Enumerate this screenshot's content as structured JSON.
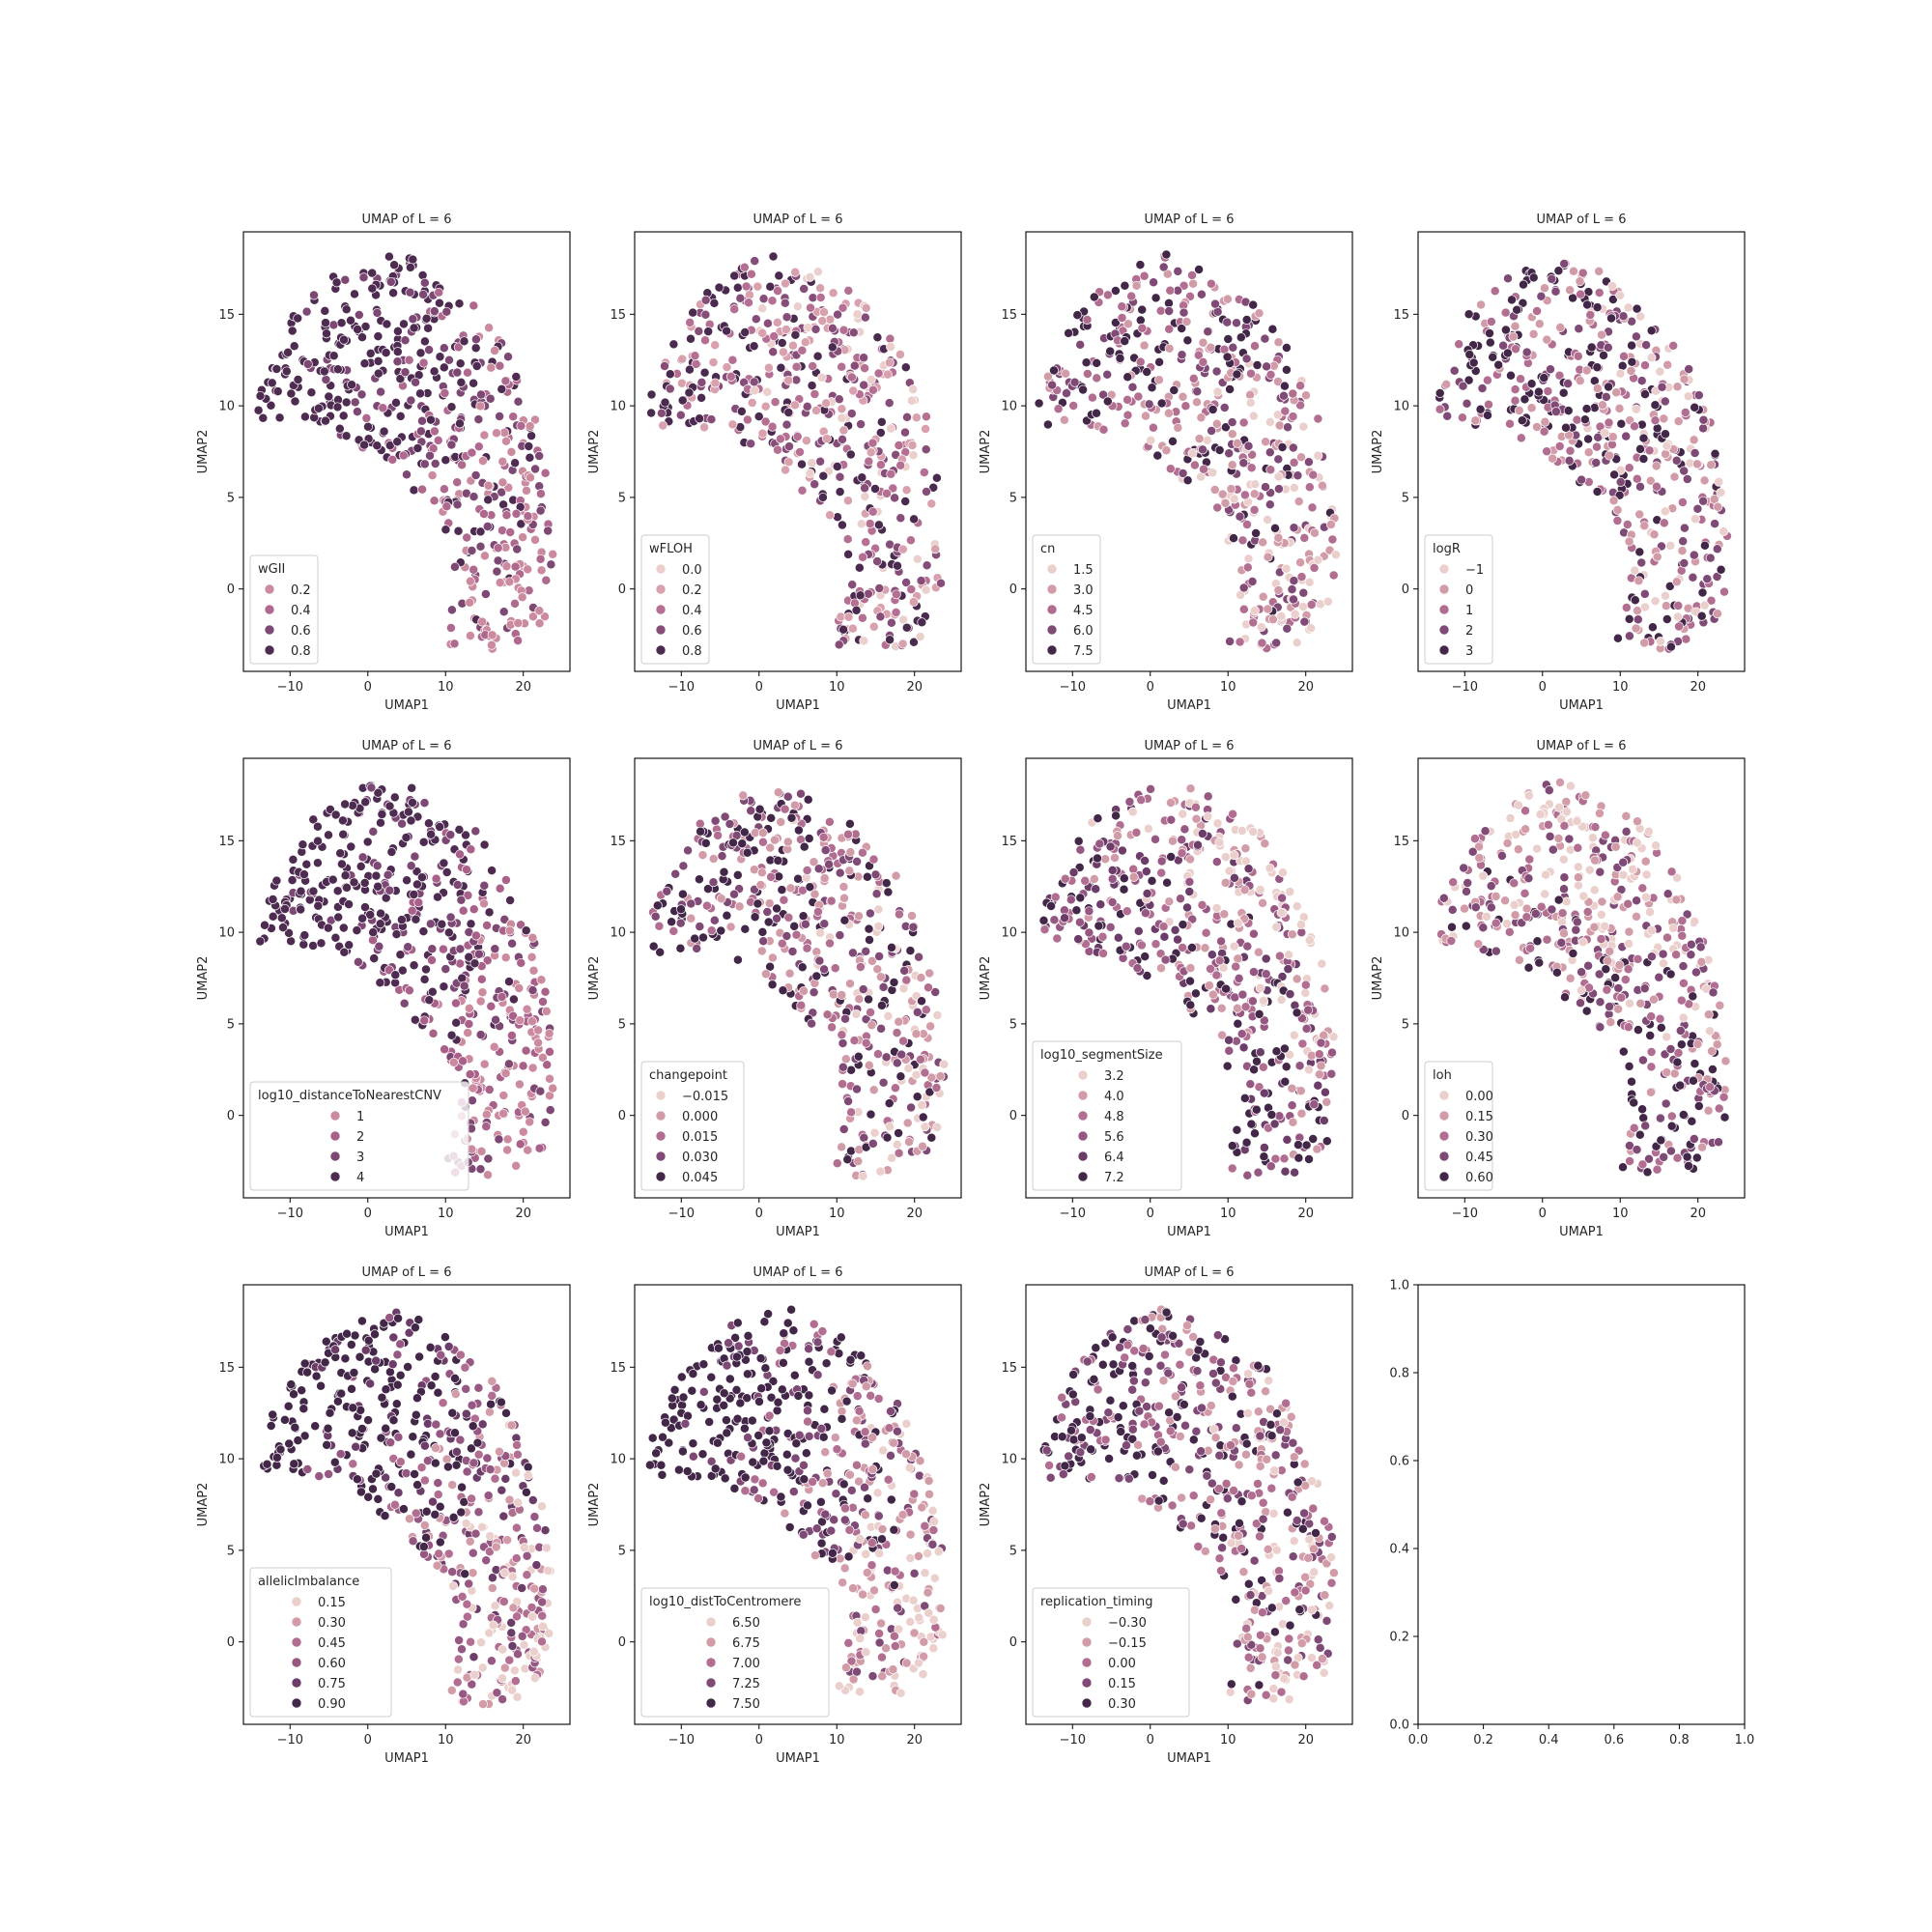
{
  "chart_data": [
    {
      "type": "scatter",
      "title": "UMAP of L = 6",
      "xlabel": "UMAP1",
      "ylabel": "UMAP2",
      "xlim": [
        -16,
        26
      ],
      "ylim": [
        -4.5,
        19.5
      ],
      "xticks": [
        -10,
        0,
        10,
        20
      ],
      "yticks": [
        0,
        5,
        10,
        15
      ],
      "legend": {
        "title": "wGII",
        "entries": [
          {
            "label": "0.2",
            "color": "#cc8a9f"
          },
          {
            "label": "0.4",
            "color": "#b0698e"
          },
          {
            "label": "0.6",
            "color": "#7d4873"
          },
          {
            "label": "0.8",
            "color": "#4e2b51"
          }
        ]
      },
      "points": {
        "count": 520,
        "seed": 11,
        "bias": [
          0.55,
          0.25
        ]
      }
    },
    {
      "type": "scatter",
      "title": "UMAP of L = 6",
      "xlabel": "UMAP1",
      "ylabel": "UMAP2",
      "xlim": [
        -16,
        26
      ],
      "ylim": [
        -4.5,
        19.5
      ],
      "xticks": [
        -10,
        0,
        10,
        20
      ],
      "yticks": [
        0,
        5,
        10,
        15
      ],
      "legend": {
        "title": "wFLOH",
        "entries": [
          {
            "label": "0.0",
            "color": "#ebcfcc"
          },
          {
            "label": "0.2",
            "color": "#d9a0ae"
          },
          {
            "label": "0.4",
            "color": "#b46f92"
          },
          {
            "label": "0.6",
            "color": "#874d79"
          },
          {
            "label": "0.8",
            "color": "#4a2a4e"
          }
        ]
      },
      "points": {
        "count": 520,
        "seed": 23,
        "bias": [
          0.3,
          -0.1
        ]
      }
    },
    {
      "type": "scatter",
      "title": "UMAP of L = 6",
      "xlabel": "UMAP1",
      "ylabel": "UMAP2",
      "xlim": [
        -16,
        26
      ],
      "ylim": [
        -4.5,
        19.5
      ],
      "xticks": [
        -10,
        0,
        10,
        20
      ],
      "yticks": [
        0,
        5,
        10,
        15
      ],
      "legend": {
        "title": "cn",
        "entries": [
          {
            "label": "1.5",
            "color": "#ebcfcc"
          },
          {
            "label": "3.0",
            "color": "#d29ba8"
          },
          {
            "label": "4.5",
            "color": "#b16e91"
          },
          {
            "label": "6.0",
            "color": "#7f4a76"
          },
          {
            "label": "7.5",
            "color": "#432748"
          }
        ]
      },
      "points": {
        "count": 520,
        "seed": 37,
        "bias": [
          0.2,
          0.2
        ]
      }
    },
    {
      "type": "scatter",
      "title": "UMAP of L = 6",
      "xlabel": "UMAP1",
      "ylabel": "UMAP2",
      "xlim": [
        -16,
        26
      ],
      "ylim": [
        -4.5,
        19.5
      ],
      "xticks": [
        -10,
        0,
        10,
        20
      ],
      "yticks": [
        0,
        5,
        10,
        15
      ],
      "legend": {
        "title": "logR",
        "entries": [
          {
            "label": "−1",
            "color": "#ebcfcc"
          },
          {
            "label": "0",
            "color": "#d29ba8"
          },
          {
            "label": "1",
            "color": "#b16e91"
          },
          {
            "label": "2",
            "color": "#7f4a76"
          },
          {
            "label": "3",
            "color": "#432748"
          }
        ]
      },
      "points": {
        "count": 520,
        "seed": 41,
        "bias": [
          0.35,
          0.0
        ]
      }
    },
    {
      "type": "scatter",
      "title": "UMAP of L = 6",
      "xlabel": "UMAP1",
      "ylabel": "UMAP2",
      "xlim": [
        -16,
        26
      ],
      "ylim": [
        -4.5,
        19.5
      ],
      "xticks": [
        -10,
        0,
        10,
        20
      ],
      "yticks": [
        0,
        5,
        10,
        15
      ],
      "legend": {
        "title": "log10_distanceToNearestCNV",
        "entries": [
          {
            "label": "1",
            "color": "#cc8a9f"
          },
          {
            "label": "2",
            "color": "#a9618a"
          },
          {
            "label": "3",
            "color": "#7d4873"
          },
          {
            "label": "4",
            "color": "#4e2b51"
          }
        ]
      },
      "points": {
        "count": 520,
        "seed": 53,
        "bias": [
          0.65,
          0.3
        ]
      }
    },
    {
      "type": "scatter",
      "title": "UMAP of L = 6",
      "xlabel": "UMAP1",
      "ylabel": "UMAP2",
      "xlim": [
        -16,
        26
      ],
      "ylim": [
        -4.5,
        19.5
      ],
      "xticks": [
        -10,
        0,
        10,
        20
      ],
      "yticks": [
        0,
        5,
        10,
        15
      ],
      "legend": {
        "title": "changepoint",
        "entries": [
          {
            "label": "−0.015",
            "color": "#ebcfcc"
          },
          {
            "label": "0.000",
            "color": "#d29ba8"
          },
          {
            "label": "0.015",
            "color": "#b16e91"
          },
          {
            "label": "0.030",
            "color": "#7f4a76"
          },
          {
            "label": "0.045",
            "color": "#432748"
          }
        ]
      },
      "points": {
        "count": 520,
        "seed": 61,
        "bias": [
          0.3,
          0.0
        ]
      }
    },
    {
      "type": "scatter",
      "title": "UMAP of L = 6",
      "xlabel": "UMAP1",
      "ylabel": "UMAP2",
      "xlim": [
        -16,
        26
      ],
      "ylim": [
        -4.5,
        19.5
      ],
      "xticks": [
        -10,
        0,
        10,
        20
      ],
      "yticks": [
        0,
        5,
        10,
        15
      ],
      "legend": {
        "title": "log10_segmentSize",
        "entries": [
          {
            "label": "3.2",
            "color": "#ebcfcc"
          },
          {
            "label": "4.0",
            "color": "#d29ba8"
          },
          {
            "label": "4.8",
            "color": "#b16e91"
          },
          {
            "label": "5.6",
            "color": "#965883"
          },
          {
            "label": "6.4",
            "color": "#6b3d68"
          },
          {
            "label": "7.2",
            "color": "#432748"
          }
        ]
      },
      "points": {
        "count": 520,
        "seed": 73,
        "bias": [
          0.45,
          -0.35
        ]
      }
    },
    {
      "type": "scatter",
      "title": "UMAP of L = 6",
      "xlabel": "UMAP1",
      "ylabel": "UMAP2",
      "xlim": [
        -16,
        26
      ],
      "ylim": [
        -4.5,
        19.5
      ],
      "xticks": [
        -10,
        0,
        10,
        20
      ],
      "yticks": [
        0,
        5,
        10,
        15
      ],
      "legend": {
        "title": "loh",
        "entries": [
          {
            "label": "0.00",
            "color": "#ebcfcc"
          },
          {
            "label": "0.15",
            "color": "#d29ba8"
          },
          {
            "label": "0.30",
            "color": "#b16e91"
          },
          {
            "label": "0.45",
            "color": "#7f4a76"
          },
          {
            "label": "0.60",
            "color": "#432748"
          }
        ]
      },
      "points": {
        "count": 520,
        "seed": 89,
        "bias": [
          0.15,
          -0.4
        ]
      }
    },
    {
      "type": "scatter",
      "title": "UMAP of L = 6",
      "xlabel": "UMAP1",
      "ylabel": "UMAP2",
      "xlim": [
        -16,
        26
      ],
      "ylim": [
        -4.5,
        19.5
      ],
      "xticks": [
        -10,
        0,
        10,
        20
      ],
      "yticks": [
        0,
        5,
        10,
        15
      ],
      "legend": {
        "title": "allelicImbalance",
        "entries": [
          {
            "label": "0.15",
            "color": "#ebcfcc"
          },
          {
            "label": "0.30",
            "color": "#d29ba8"
          },
          {
            "label": "0.45",
            "color": "#b16e91"
          },
          {
            "label": "0.60",
            "color": "#965883"
          },
          {
            "label": "0.75",
            "color": "#6b3d68"
          },
          {
            "label": "0.90",
            "color": "#432748"
          }
        ]
      },
      "points": {
        "count": 520,
        "seed": 97,
        "bias": [
          0.6,
          0.3
        ]
      }
    },
    {
      "type": "scatter",
      "title": "UMAP of L = 6",
      "xlabel": "UMAP1",
      "ylabel": "UMAP2",
      "xlim": [
        -16,
        26
      ],
      "ylim": [
        -4.5,
        19.5
      ],
      "xticks": [
        -10,
        0,
        10,
        20
      ],
      "yticks": [
        0,
        5,
        10,
        15
      ],
      "legend": {
        "title": "log10_distToCentromere",
        "entries": [
          {
            "label": "6.50",
            "color": "#ebcfcc"
          },
          {
            "label": "6.75",
            "color": "#d29ba8"
          },
          {
            "label": "7.00",
            "color": "#b16e91"
          },
          {
            "label": "7.25",
            "color": "#7f4a76"
          },
          {
            "label": "7.50",
            "color": "#432748"
          }
        ]
      },
      "points": {
        "count": 520,
        "seed": 103,
        "bias": [
          0.7,
          0.2
        ]
      }
    },
    {
      "type": "scatter",
      "title": "UMAP of L = 6",
      "xlabel": "UMAP1",
      "ylabel": "UMAP2",
      "xlim": [
        -16,
        26
      ],
      "ylim": [
        -4.5,
        19.5
      ],
      "xticks": [
        -10,
        0,
        10,
        20
      ],
      "yticks": [
        0,
        5,
        10,
        15
      ],
      "legend": {
        "title": "replication_timing",
        "entries": [
          {
            "label": "−0.30",
            "color": "#ebcfcc"
          },
          {
            "label": "−0.15",
            "color": "#d29ba8"
          },
          {
            "label": "0.00",
            "color": "#b16e91"
          },
          {
            "label": "0.15",
            "color": "#7f4a76"
          },
          {
            "label": "0.30",
            "color": "#432748"
          }
        ]
      },
      "points": {
        "count": 520,
        "seed": 113,
        "bias": [
          0.45,
          0.0
        ]
      }
    },
    {
      "type": "scatter",
      "title": "",
      "xlabel": "",
      "ylabel": "",
      "xlim": [
        0,
        1
      ],
      "ylim": [
        0,
        1
      ],
      "xticks": [
        "0.0",
        "0.2",
        "0.4",
        "0.6",
        "0.8",
        "1.0"
      ],
      "yticks": [
        "0.0",
        "0.2",
        "0.4",
        "0.6",
        "0.8",
        "1.0"
      ],
      "empty": true
    }
  ]
}
